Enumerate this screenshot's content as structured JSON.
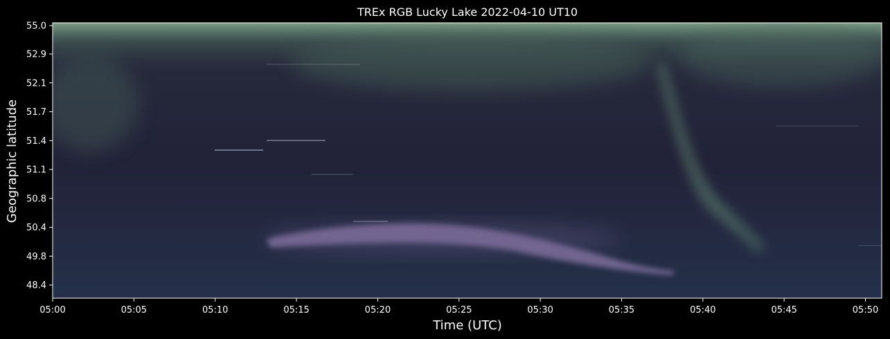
{
  "chart_data": {
    "type": "heatmap",
    "title": "TREx RGB Lucky Lake 2022-04-10 UT10",
    "xlabel": "Time (UTC)",
    "ylabel": "Geographic latitude",
    "x_ticks": [
      "05:00",
      "05:05",
      "05:10",
      "05:15",
      "05:20",
      "05:25",
      "05:30",
      "05:35",
      "05:40",
      "05:45",
      "05:50"
    ],
    "x_range_minutes": [
      0,
      51
    ],
    "y_ticks": [
      "48.4",
      "49.8",
      "50.4",
      "50.8",
      "51.1",
      "51.4",
      "51.7",
      "52.1",
      "52.9",
      "55.0"
    ],
    "background_color": "#000000",
    "text_color": "#ffffff",
    "colors": {
      "sky_base": "#222238",
      "green_emission": "#6f9a7c",
      "purple_arc": "#a48bbf",
      "edge_green": "#8fb898"
    }
  }
}
